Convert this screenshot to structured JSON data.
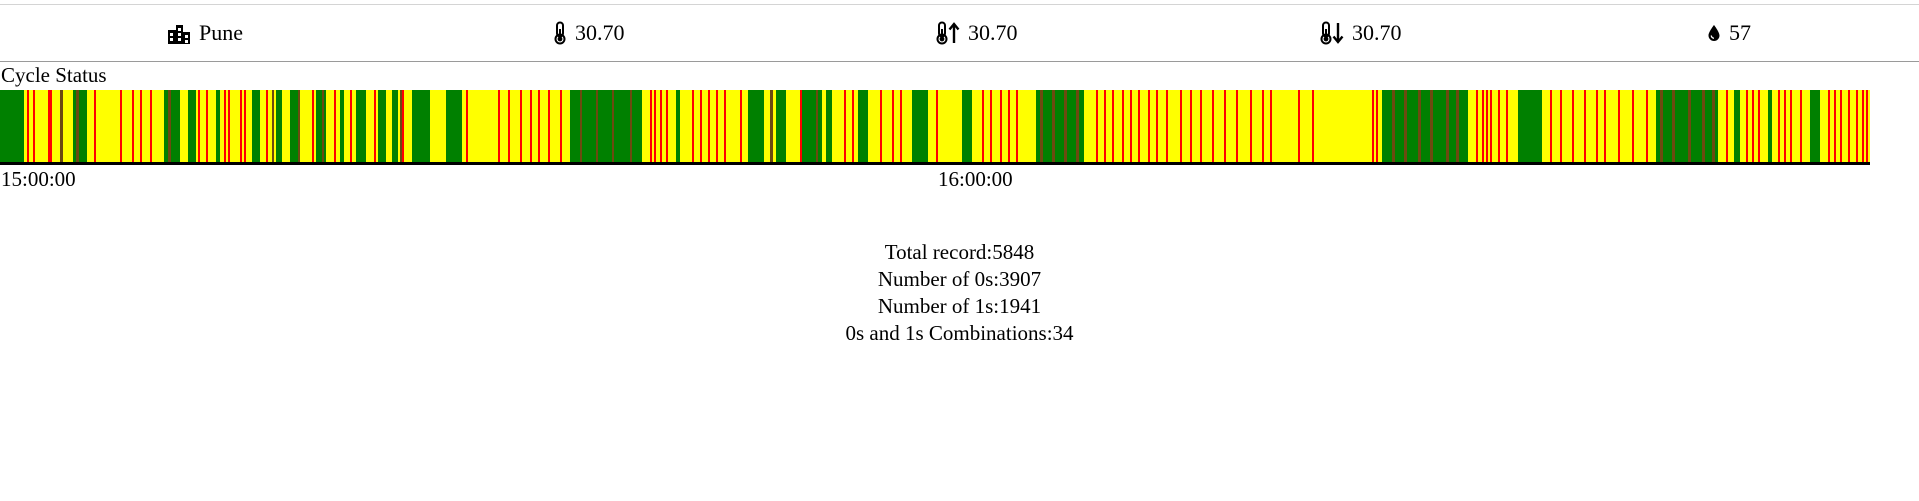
{
  "weather": {
    "city": "Pune",
    "temperature": "30.70",
    "temp_max": "30.70",
    "temp_min": "30.70",
    "humidity": "57",
    "icons": {
      "city": "city-icon",
      "temperature": "thermometer-icon",
      "temp_max": "thermometer-up-icon",
      "temp_min": "thermometer-down-icon",
      "humidity": "water-drop-icon"
    }
  },
  "cycle": {
    "title": "Cycle Status",
    "time_labels": [
      "15:00:00",
      "16:00:00"
    ],
    "colors": {
      "yellow": "#ffff00",
      "green": "#008000",
      "red": "#ff0000",
      "dark": "#6b4a10",
      "axis": "#000000"
    }
  },
  "stats": {
    "total_record": "Total record:5848",
    "num_zeros": "Number of 0s:3907",
    "num_ones": "Number of 1s:1941",
    "combinations": "0s and 1s Combinations:34"
  }
}
